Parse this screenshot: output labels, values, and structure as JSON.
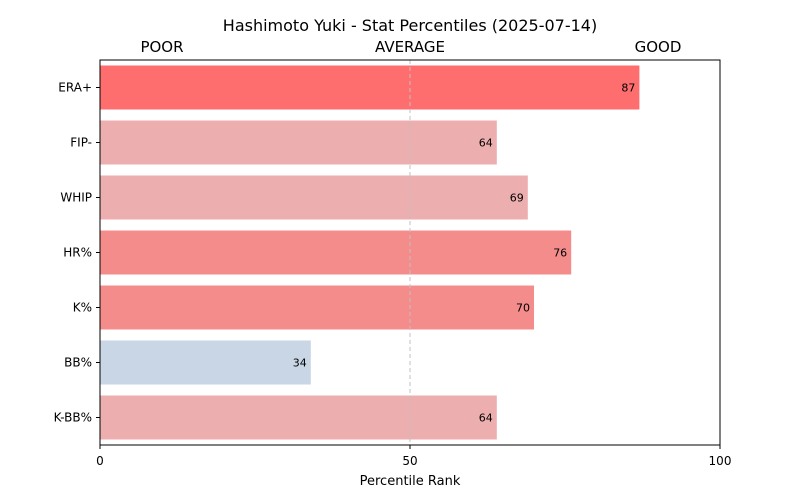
{
  "chart_data": {
    "type": "bar",
    "orientation": "horizontal",
    "title": "Hashimoto Yuki - Stat Percentiles (2025-07-14)",
    "xlabel": "Percentile Rank",
    "ylabel": "",
    "xlim": [
      0,
      100
    ],
    "x_ticks": [
      0,
      50,
      100
    ],
    "zone_labels": [
      "POOR",
      "AVERAGE",
      "GOOD"
    ],
    "reference_line": 50,
    "grid": false,
    "legend": "none",
    "categories": [
      "ERA+",
      "FIP-",
      "WHIP",
      "HR%",
      "K%",
      "BB%",
      "K-BB%"
    ],
    "values": [
      87,
      64,
      69,
      76,
      70,
      34,
      64
    ],
    "colors": [
      "#ff6e6e",
      "#ecaeae",
      "#ecaeae",
      "#f48c8c",
      "#f48c8c",
      "#c8d6e6",
      "#ecaeae"
    ]
  }
}
